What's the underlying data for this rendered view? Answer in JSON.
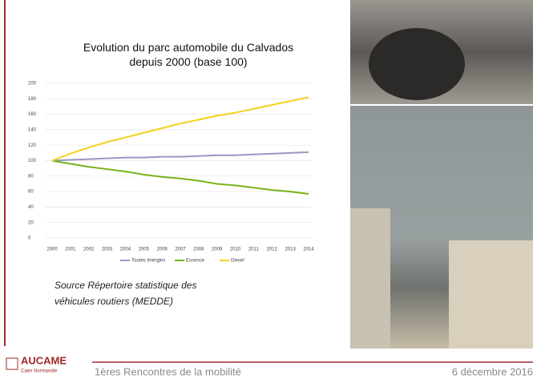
{
  "chart_data": {
    "type": "line",
    "title": "Evolution du parc automobile du Calvados depuis 2000 (base 100)",
    "categories": [
      "2000",
      "2001",
      "2002",
      "2003",
      "2004",
      "2005",
      "2006",
      "2007",
      "2008",
      "2009",
      "2010",
      "2011",
      "2012",
      "2013",
      "2014"
    ],
    "series": [
      {
        "name": "Toutes énergies",
        "color": "#9b96c2",
        "values": [
          100,
          101,
          102,
          103,
          104,
          104,
          105,
          105,
          106,
          107,
          107,
          108,
          109,
          110,
          111
        ]
      },
      {
        "name": "Essence",
        "color": "#78b31a",
        "values": [
          100,
          96,
          92,
          89,
          86,
          82,
          79,
          77,
          74,
          70,
          68,
          65,
          62,
          60,
          57
        ]
      },
      {
        "name": "Diesel",
        "color": "#f3d11b",
        "values": [
          100,
          109,
          117,
          124,
          130,
          136,
          142,
          148,
          153,
          158,
          162,
          167,
          172,
          177,
          182
        ]
      }
    ],
    "ylim": [
      0,
      200
    ],
    "yticks": [
      0,
      20,
      40,
      60,
      80,
      100,
      120,
      140,
      160,
      180,
      200
    ],
    "grid": true,
    "legend": "bottom"
  },
  "source": [
    "Source Répertoire statistique des",
    "véhicules routiers (MEDDE)"
  ],
  "footer": {
    "logo": "AUCAME",
    "logo_sub": "Caen Normandie",
    "event": "1ères Rencontres de la mobilité",
    "date": "6 décembre 2016"
  }
}
